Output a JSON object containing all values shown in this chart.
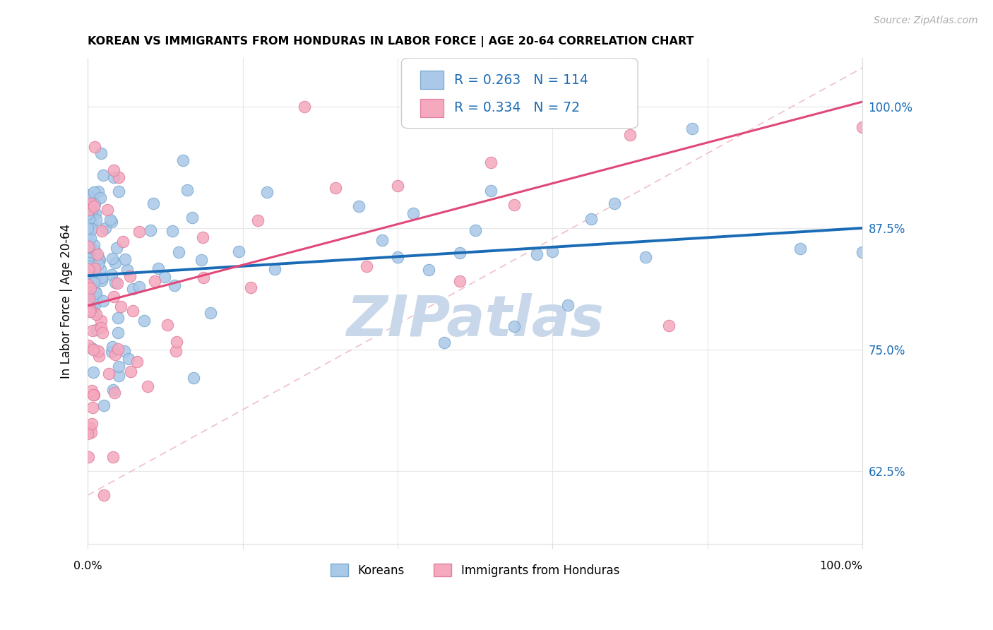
{
  "title": "KOREAN VS IMMIGRANTS FROM HONDURAS IN LABOR FORCE | AGE 20-64 CORRELATION CHART",
  "source": "Source: ZipAtlas.com",
  "ylabel": "In Labor Force | Age 20-64",
  "ytick_labels": [
    "62.5%",
    "75.0%",
    "87.5%",
    "100.0%"
  ],
  "ytick_positions": [
    0.625,
    0.75,
    0.875,
    1.0
  ],
  "blue_R": 0.263,
  "blue_N": 114,
  "pink_R": 0.334,
  "pink_N": 72,
  "blue_scatter_color": "#aac8e8",
  "pink_scatter_color": "#f5a8be",
  "blue_edge_color": "#7aaad0",
  "pink_edge_color": "#e080a0",
  "blue_line_color": "#1a6bb5",
  "pink_line_color": "#e04878",
  "diag_color": "#f0c0c8",
  "watermark": "ZIPatlas",
  "watermark_color": "#c8d8ea",
  "legend_label_blue": "Koreans",
  "legend_label_pink": "Immigrants from Honduras",
  "xlim": [
    0.0,
    1.0
  ],
  "ylim": [
    0.55,
    1.05
  ],
  "grid_color": "#e8e8e8",
  "spine_color": "#dddddd",
  "xtick_positions": [
    0.0,
    0.2,
    0.4,
    0.6,
    0.8,
    1.0
  ],
  "blue_line_start_y": 0.826,
  "blue_line_end_y": 0.875,
  "pink_line_start_y": 0.795,
  "pink_line_end_y": 1.005
}
